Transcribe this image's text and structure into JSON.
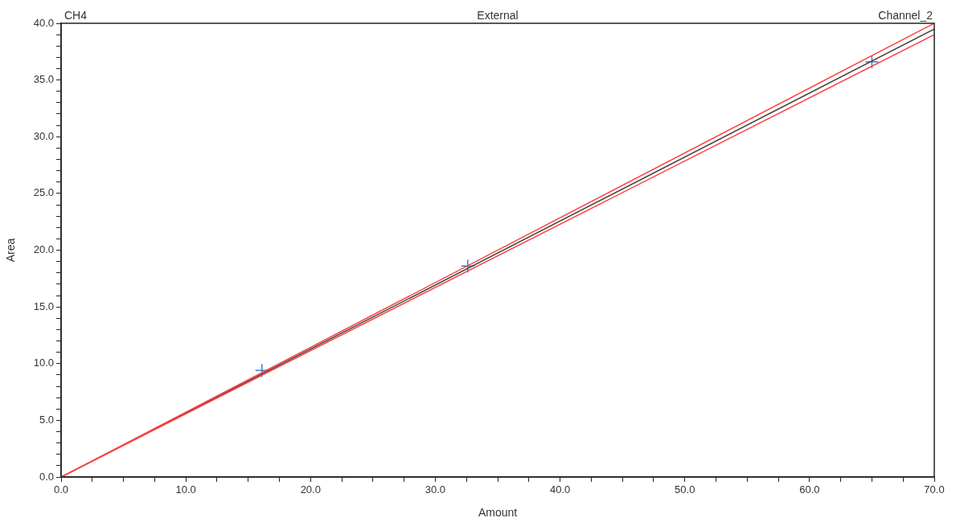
{
  "chart_data": {
    "type": "scatter",
    "title": "External",
    "annotations": [
      "CH4",
      "Channel_2"
    ],
    "xlabel": "Amount",
    "ylabel": "Area",
    "xlim": [
      0,
      70
    ],
    "xticks": [
      {
        "value": 0,
        "label": "0.0"
      },
      {
        "value": 2.5,
        "label": null
      },
      {
        "value": 5,
        "label": null
      },
      {
        "value": 7.5,
        "label": null
      },
      {
        "value": 10,
        "label": "10.0"
      },
      {
        "value": 12.5,
        "label": null
      },
      {
        "value": 15,
        "label": null
      },
      {
        "value": 17.5,
        "label": null
      },
      {
        "value": 20,
        "label": "20.0"
      },
      {
        "value": 22.5,
        "label": null
      },
      {
        "value": 25,
        "label": null
      },
      {
        "value": 27.5,
        "label": null
      },
      {
        "value": 30,
        "label": "30.0"
      },
      {
        "value": 32.5,
        "label": null
      },
      {
        "value": 35,
        "label": null
      },
      {
        "value": 37.5,
        "label": null
      },
      {
        "value": 40,
        "label": "40.0"
      },
      {
        "value": 42.5,
        "label": null
      },
      {
        "value": 45,
        "label": null
      },
      {
        "value": 47.5,
        "label": null
      },
      {
        "value": 50,
        "label": "50.0"
      },
      {
        "value": 52.5,
        "label": null
      },
      {
        "value": 55,
        "label": null
      },
      {
        "value": 57.5,
        "label": null
      },
      {
        "value": 60,
        "label": "60.0"
      },
      {
        "value": 62.5,
        "label": null
      },
      {
        "value": 65,
        "label": null
      },
      {
        "value": 67.5,
        "label": null
      },
      {
        "value": 70,
        "label": "70.0"
      }
    ],
    "ylim": [
      0,
      40
    ],
    "yticks": [
      {
        "value": 0,
        "label": "0.0"
      },
      {
        "value": 1,
        "label": null
      },
      {
        "value": 2,
        "label": null
      },
      {
        "value": 3,
        "label": null
      },
      {
        "value": 4,
        "label": null
      },
      {
        "value": 5,
        "label": "5.0"
      },
      {
        "value": 6,
        "label": null
      },
      {
        "value": 7,
        "label": null
      },
      {
        "value": 8,
        "label": null
      },
      {
        "value": 9,
        "label": null
      },
      {
        "value": 10,
        "label": "10.0"
      },
      {
        "value": 11,
        "label": null
      },
      {
        "value": 12,
        "label": null
      },
      {
        "value": 13,
        "label": null
      },
      {
        "value": 14,
        "label": null
      },
      {
        "value": 15,
        "label": "15.0"
      },
      {
        "value": 16,
        "label": null
      },
      {
        "value": 17,
        "label": null
      },
      {
        "value": 18,
        "label": null
      },
      {
        "value": 19,
        "label": null
      },
      {
        "value": 20,
        "label": "20.0"
      },
      {
        "value": 21,
        "label": null
      },
      {
        "value": 22,
        "label": null
      },
      {
        "value": 23,
        "label": null
      },
      {
        "value": 24,
        "label": null
      },
      {
        "value": 25,
        "label": "25.0"
      },
      {
        "value": 26,
        "label": null
      },
      {
        "value": 27,
        "label": null
      },
      {
        "value": 28,
        "label": null
      },
      {
        "value": 29,
        "label": null
      },
      {
        "value": 30,
        "label": "30.0"
      },
      {
        "value": 31,
        "label": null
      },
      {
        "value": 32,
        "label": null
      },
      {
        "value": 33,
        "label": null
      },
      {
        "value": 34,
        "label": null
      },
      {
        "value": 35,
        "label": "35.0"
      },
      {
        "value": 36,
        "label": null
      },
      {
        "value": 37,
        "label": null
      },
      {
        "value": 38,
        "label": null
      },
      {
        "value": 39,
        "label": null
      },
      {
        "value": 40,
        "label": "40.0"
      }
    ],
    "grid": false,
    "legend": false,
    "series": [
      {
        "type": "line",
        "color": "#ff4040",
        "marker": "none",
        "x": [
          0,
          70
        ],
        "values": [
          0,
          40.0
        ]
      },
      {
        "type": "line",
        "color": "#ff4040",
        "marker": "none",
        "x": [
          0,
          70
        ],
        "values": [
          0,
          39.0
        ]
      },
      {
        "type": "line",
        "color": "#404040",
        "marker": "none",
        "x": [
          0,
          70
        ],
        "values": [
          0,
          39.5
        ]
      },
      {
        "color": "#3a80c8",
        "marker": "cross",
        "x": [
          16.1,
          32.6,
          65.0
        ],
        "values": [
          9.4,
          18.6,
          36.6
        ]
      }
    ]
  }
}
